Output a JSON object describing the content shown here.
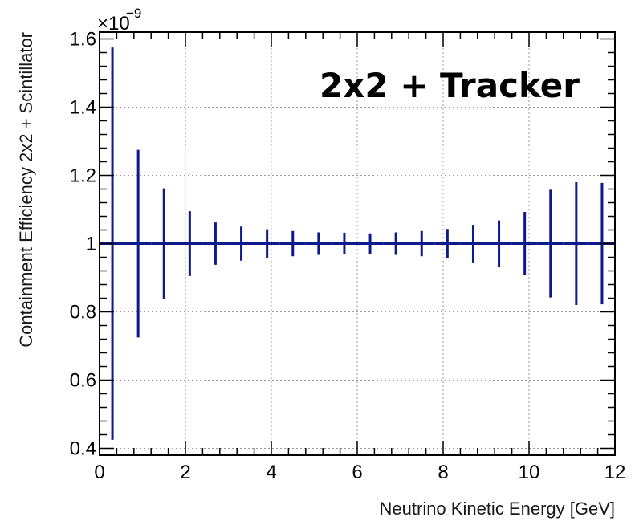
{
  "chart_data": {
    "type": "scatter",
    "title": "",
    "annotation": "2x2 + Tracker",
    "xlabel": "Neutrino Kinetic Energy [GeV]",
    "ylabel": "Containment Efficiency 2x2 + Scintillator",
    "y_exponent_base": "×10",
    "y_exponent_power": "−9",
    "xlim": [
      0,
      12
    ],
    "ylim": [
      0.38,
      1.62
    ],
    "x_ticks": [
      0,
      2,
      4,
      6,
      8,
      10,
      12
    ],
    "x_tick_labels": [
      "0",
      "2",
      "4",
      "6",
      "8",
      "10",
      "12"
    ],
    "y_ticks": [
      0.4,
      0.6,
      0.8,
      1.0,
      1.2,
      1.4,
      1.6
    ],
    "y_tick_labels": [
      "0.4",
      "0.6",
      "0.8",
      "1",
      "1.2",
      "1.4",
      "1.6"
    ],
    "grid": true,
    "color": "#0d1a8c",
    "bin_width": 0.6,
    "points": [
      {
        "x": 0.3,
        "y": 1.0,
        "err": 0.575
      },
      {
        "x": 0.9,
        "y": 1.0,
        "err": 0.275
      },
      {
        "x": 1.5,
        "y": 1.0,
        "err": 0.162
      },
      {
        "x": 2.1,
        "y": 1.0,
        "err": 0.095
      },
      {
        "x": 2.7,
        "y": 1.0,
        "err": 0.062
      },
      {
        "x": 3.3,
        "y": 1.0,
        "err": 0.05
      },
      {
        "x": 3.9,
        "y": 1.0,
        "err": 0.042
      },
      {
        "x": 4.5,
        "y": 1.0,
        "err": 0.037
      },
      {
        "x": 5.1,
        "y": 1.0,
        "err": 0.033
      },
      {
        "x": 5.7,
        "y": 1.0,
        "err": 0.032
      },
      {
        "x": 6.3,
        "y": 1.0,
        "err": 0.03
      },
      {
        "x": 6.9,
        "y": 1.0,
        "err": 0.033
      },
      {
        "x": 7.5,
        "y": 1.0,
        "err": 0.037
      },
      {
        "x": 8.1,
        "y": 1.0,
        "err": 0.043
      },
      {
        "x": 8.7,
        "y": 1.0,
        "err": 0.055
      },
      {
        "x": 9.3,
        "y": 1.0,
        "err": 0.068
      },
      {
        "x": 9.9,
        "y": 1.0,
        "err": 0.093
      },
      {
        "x": 10.5,
        "y": 1.0,
        "err": 0.158
      },
      {
        "x": 11.1,
        "y": 1.0,
        "err": 0.18
      },
      {
        "x": 11.7,
        "y": 1.0,
        "err": 0.178
      }
    ]
  }
}
